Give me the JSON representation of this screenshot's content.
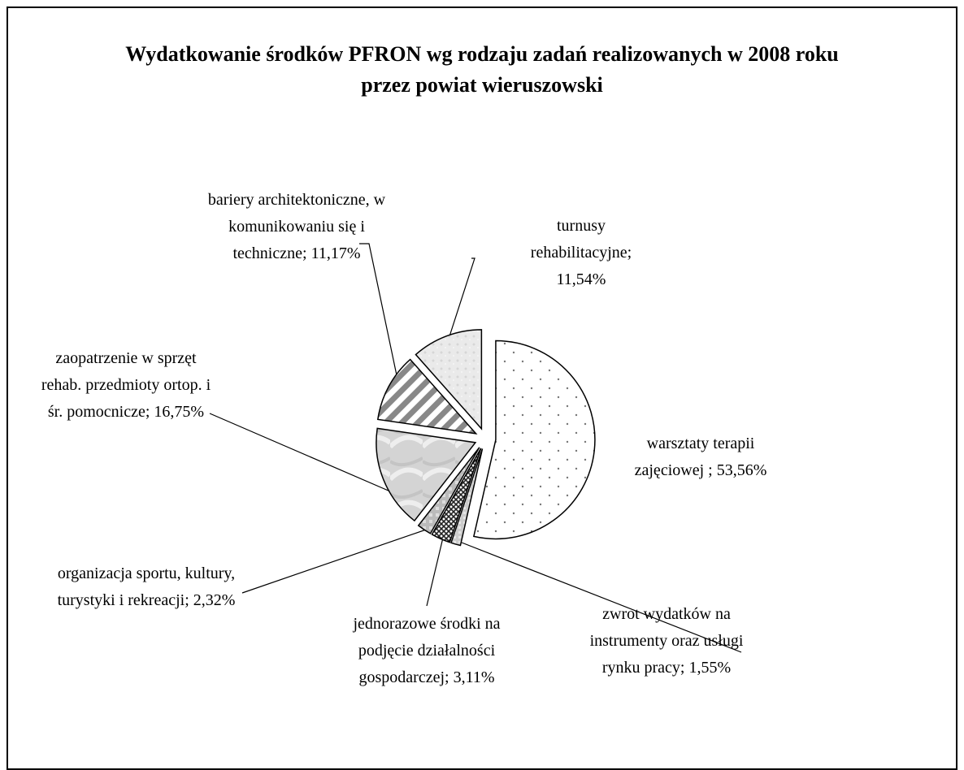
{
  "chart_data": {
    "type": "pie",
    "title": "Wydatkowanie środków PFRON wg rodzaju zadań realizowanych w 2008 roku przez powiat wieruszowski",
    "categories": [
      "warsztaty terapii zajęciowej ;",
      "zwrot wydatków na instrumenty oraz usługi rynku pracy;",
      "jednorazowe środki na podjęcie działalności gospodarczej;",
      "organizacja sportu, kultury, turystyki i rekreacji;",
      "zaopatrzenie w sprzęt rehab. przedmioty ortop. i śr. pomocnicze;",
      "bariery architektoniczne, w komunikowaniu się i techniczne;",
      "turnusy rehabilitacyjne;"
    ],
    "values": [
      53.56,
      1.55,
      3.11,
      2.32,
      16.75,
      11.17,
      11.54
    ],
    "value_labels": [
      "53,56%",
      "1,55%",
      "3,11%",
      "2,32%",
      "16,75%",
      "11,17%",
      "11,54%"
    ]
  }
}
